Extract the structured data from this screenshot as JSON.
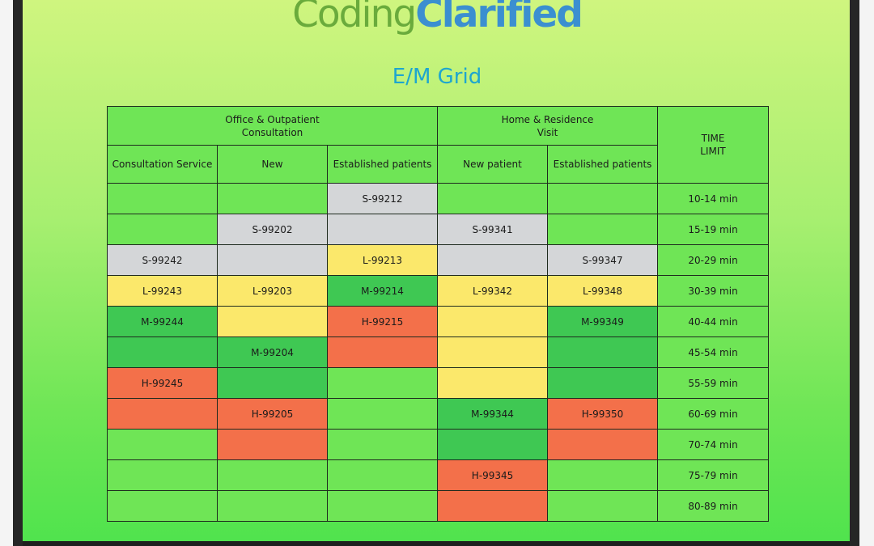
{
  "logo": {
    "part1": "Coding",
    "part2": "Clarified"
  },
  "title": "E/M Grid",
  "table": {
    "groups": [
      {
        "line1": "Office & Outpatient",
        "line2": "Consultation"
      },
      {
        "line1": "Home & Residence",
        "line2": "Visit"
      }
    ],
    "time_header": {
      "line1": "TIME",
      "line2": "LIMIT"
    },
    "subheaders": [
      "Consultation Service",
      "New",
      "Established patients",
      "New patient",
      "Established patients"
    ],
    "rows": [
      {
        "cells": [
          {
            "text": "",
            "color": "lg"
          },
          {
            "text": "",
            "color": "lg"
          },
          {
            "text": "S-99212",
            "color": "gy"
          },
          {
            "text": "",
            "color": "lg"
          },
          {
            "text": "",
            "color": "lg"
          }
        ],
        "time": "10-14 min"
      },
      {
        "cells": [
          {
            "text": "",
            "color": "lg"
          },
          {
            "text": "S-99202",
            "color": "gy"
          },
          {
            "text": "",
            "color": "gy"
          },
          {
            "text": "S-99341",
            "color": "gy"
          },
          {
            "text": "",
            "color": "lg"
          }
        ],
        "time": "15-19 min"
      },
      {
        "cells": [
          {
            "text": "S-99242",
            "color": "gy"
          },
          {
            "text": "",
            "color": "gy"
          },
          {
            "text": "L-99213",
            "color": "ye"
          },
          {
            "text": "",
            "color": "gy"
          },
          {
            "text": "S-99347",
            "color": "gy"
          }
        ],
        "time": "20-29 min"
      },
      {
        "cells": [
          {
            "text": "L-99243",
            "color": "ye"
          },
          {
            "text": "L-99203",
            "color": "ye"
          },
          {
            "text": "M-99214",
            "color": "mg"
          },
          {
            "text": "L-99342",
            "color": "ye"
          },
          {
            "text": "L-99348",
            "color": "ye"
          }
        ],
        "time": "30-39 min"
      },
      {
        "cells": [
          {
            "text": "M-99244",
            "color": "mg"
          },
          {
            "text": "",
            "color": "ye"
          },
          {
            "text": "H-99215",
            "color": "or"
          },
          {
            "text": "",
            "color": "ye"
          },
          {
            "text": "M-99349",
            "color": "mg"
          }
        ],
        "time": "40-44 min"
      },
      {
        "cells": [
          {
            "text": "",
            "color": "mg"
          },
          {
            "text": "M-99204",
            "color": "mg"
          },
          {
            "text": "",
            "color": "or"
          },
          {
            "text": "",
            "color": "ye"
          },
          {
            "text": "",
            "color": "mg"
          }
        ],
        "time": "45-54 min"
      },
      {
        "cells": [
          {
            "text": "H-99245",
            "color": "or"
          },
          {
            "text": "",
            "color": "mg"
          },
          {
            "text": "",
            "color": "lg"
          },
          {
            "text": "",
            "color": "ye"
          },
          {
            "text": "",
            "color": "mg"
          }
        ],
        "time": "55-59 min"
      },
      {
        "cells": [
          {
            "text": "",
            "color": "or"
          },
          {
            "text": "H-99205",
            "color": "or"
          },
          {
            "text": "",
            "color": "lg"
          },
          {
            "text": "M-99344",
            "color": "mg"
          },
          {
            "text": "H-99350",
            "color": "or"
          }
        ],
        "time": "60-69 min"
      },
      {
        "cells": [
          {
            "text": "",
            "color": "lg"
          },
          {
            "text": "",
            "color": "or"
          },
          {
            "text": "",
            "color": "lg"
          },
          {
            "text": "",
            "color": "mg"
          },
          {
            "text": "",
            "color": "or"
          }
        ],
        "time": "70-74 min"
      },
      {
        "cells": [
          {
            "text": "",
            "color": "lg"
          },
          {
            "text": "",
            "color": "lg"
          },
          {
            "text": "",
            "color": "lg"
          },
          {
            "text": "H-99345",
            "color": "or"
          },
          {
            "text": "",
            "color": "lg"
          }
        ],
        "time": "75-79 min"
      },
      {
        "cells": [
          {
            "text": "",
            "color": "lg"
          },
          {
            "text": "",
            "color": "lg"
          },
          {
            "text": "",
            "color": "lg"
          },
          {
            "text": "",
            "color": "or"
          },
          {
            "text": "",
            "color": "lg"
          }
        ],
        "time": "80-89 min"
      }
    ]
  },
  "colors": {
    "lg": "#6fe556",
    "gy": "#d4d6d8",
    "ye": "#fbe86b",
    "mg": "#3fc853",
    "or": "#f3704a",
    "title": "#1ea6cf",
    "logo_coding": "#6aab3c",
    "logo_clarified": "#3b8fd0"
  }
}
